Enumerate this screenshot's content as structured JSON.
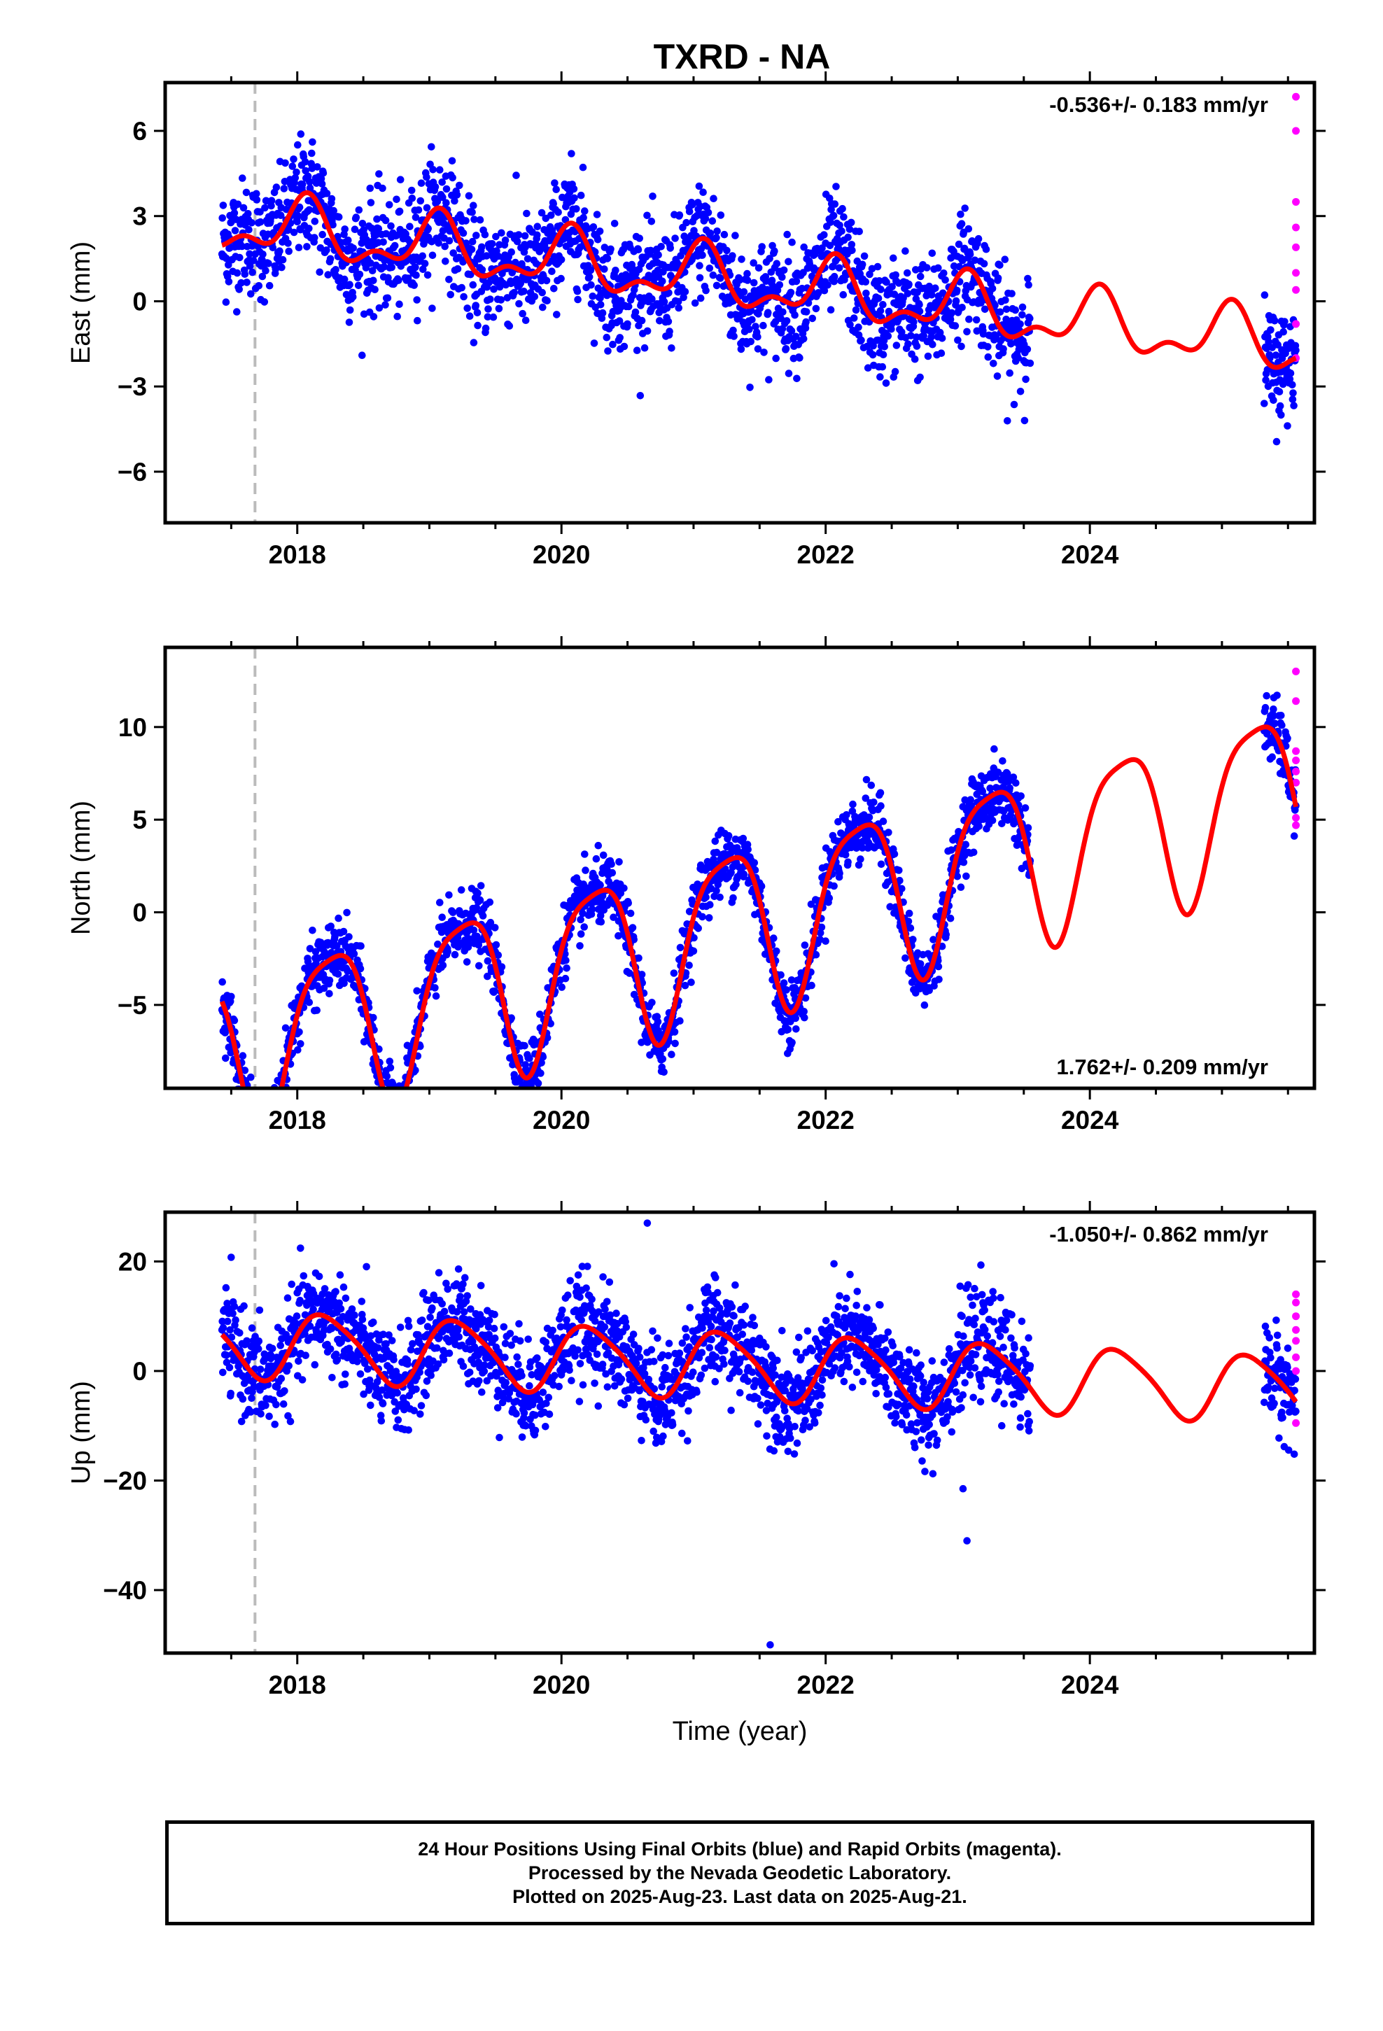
{
  "title": "TXRD - NA",
  "x_axis_label": "Time (year)",
  "caption": [
    "24 Hour Positions Using Final Orbits (blue) and Rapid Orbits (magenta).",
    "Processed by the Nevada Geodetic Laboratory.",
    "Plotted on 2025-Aug-23. Last data on 2025-Aug-21."
  ],
  "colors": {
    "final_orbits": "#0000ff",
    "rapid_orbits": "#ff00ff",
    "model_fit": "#ff0000",
    "marker_line": "#bbbbbb",
    "axes": "#000000"
  },
  "chart_data": [
    {
      "type": "scatter",
      "ylabel": "East (mm)",
      "rate_label": "-0.536+/- 0.183 mm/yr",
      "rate_label_position": "top-right",
      "xlim": [
        2017.0,
        2025.7
      ],
      "ylim": [
        -7.8,
        7.7
      ],
      "x_ticks": [
        2018,
        2020,
        2022,
        2024
      ],
      "x_ticks_minor": [
        2017.5,
        2018.5,
        2019,
        2019.5,
        2020.5,
        2021,
        2021.5,
        2022.5,
        2023,
        2023.5,
        2024.5,
        2025,
        2025.5
      ],
      "y_ticks": [
        -6,
        -3,
        0,
        3,
        6
      ],
      "y_ticks_labels": [
        "−6",
        "−3",
        "0",
        "3",
        "6"
      ],
      "grid": false,
      "vertical_marker_x": 2017.68,
      "data_span": {
        "start": 2017.43,
        "end": 2023.55,
        "late_start": 2025.32,
        "late_end": 2025.56
      },
      "trend_mm_per_yr": -0.536,
      "model": {
        "offset": 1.4,
        "rate": -0.536,
        "annual_amp": 0.9,
        "annual_phase": 1.2,
        "semiannual_amp": 0.5,
        "semiannual_phase": 0.5,
        "noise_sd": 1.0
      },
      "rapid_points": {
        "x": [
          2025.56,
          2025.56,
          2025.56,
          2025.56,
          2025.56,
          2025.56,
          2025.56,
          2025.56,
          2025.56
        ],
        "y": [
          7.2,
          6.0,
          3.5,
          2.6,
          1.9,
          1.0,
          0.4,
          -0.8,
          -2.0
        ]
      }
    },
    {
      "type": "scatter",
      "ylabel": "North (mm)",
      "rate_label": "1.762+/- 0.209 mm/yr",
      "rate_label_position": "bottom-right",
      "xlim": [
        2017.0,
        2025.7
      ],
      "ylim": [
        -9.5,
        14.3
      ],
      "x_ticks": [
        2018,
        2020,
        2022,
        2024
      ],
      "x_ticks_minor": [
        2017.5,
        2018.5,
        2019,
        2019.5,
        2020.5,
        2021,
        2021.5,
        2022.5,
        2023,
        2023.5,
        2024.5,
        2025,
        2025.5
      ],
      "y_ticks": [
        -5,
        0,
        5,
        10
      ],
      "y_ticks_labels": [
        "−5",
        "0",
        "5",
        "10"
      ],
      "grid": false,
      "vertical_marker_x": 2017.68,
      "data_span": {
        "start": 2017.43,
        "end": 2023.55,
        "late_start": 2025.32,
        "late_end": 2025.56
      },
      "trend_mm_per_yr": 1.762,
      "model": {
        "offset": -3.0,
        "rate": 1.762,
        "annual_amp": 4.5,
        "annual_phase": 0.0,
        "semiannual_amp": 1.0,
        "semiannual_phase": 1.8,
        "noise_sd": 0.9
      },
      "rapid_points": {
        "x": [
          2025.56,
          2025.56,
          2025.56,
          2025.56,
          2025.56,
          2025.56,
          2025.56,
          2025.56
        ],
        "y": [
          13.0,
          11.4,
          8.7,
          8.2,
          7.6,
          7.0,
          5.1,
          4.7
        ]
      }
    },
    {
      "type": "scatter",
      "ylabel": "Up (mm)",
      "rate_label": "-1.050+/- 0.862 mm/yr",
      "rate_label_position": "top-right",
      "xlim": [
        2017.0,
        2025.7
      ],
      "ylim": [
        -51.5,
        29.0
      ],
      "x_ticks": [
        2018,
        2020,
        2022,
        2024
      ],
      "x_ticks_minor": [
        2017.5,
        2018.5,
        2019,
        2019.5,
        2020.5,
        2021,
        2021.5,
        2022.5,
        2023,
        2023.5,
        2024.5,
        2025,
        2025.5
      ],
      "y_ticks": [
        -40,
        -20,
        0,
        20
      ],
      "y_ticks_labels": [
        "−40",
        "−20",
        "0",
        "20"
      ],
      "grid": false,
      "vertical_marker_x": 2017.68,
      "data_span": {
        "start": 2017.43,
        "end": 2023.55,
        "late_start": 2025.32,
        "late_end": 2025.56
      },
      "trend_mm_per_yr": -1.05,
      "model": {
        "offset": 2.5,
        "rate": -1.05,
        "annual_amp": 6.0,
        "annual_phase": 0.2,
        "semiannual_amp": 1.0,
        "semiannual_phase": 0.9,
        "noise_sd": 4.5
      },
      "outliers": {
        "x": [
          2020.65,
          2021.58,
          2023.07,
          2023.04
        ],
        "y": [
          27.0,
          -50.0,
          -31.0,
          -21.5
        ]
      },
      "rapid_points": {
        "x": [
          2025.56,
          2025.56,
          2025.56,
          2025.56,
          2025.56,
          2025.56,
          2025.56,
          2025.56
        ],
        "y": [
          14.0,
          12.5,
          10.0,
          7.5,
          5.5,
          2.5,
          0.0,
          -9.5
        ]
      }
    }
  ]
}
